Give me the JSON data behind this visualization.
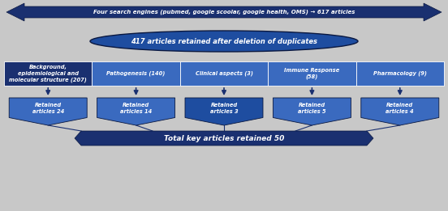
{
  "background_color": "#c8c8c8",
  "dark_blue": "#1a3070",
  "mid_blue": "#1e4da0",
  "light_blue": "#3a6abf",
  "top_arrow_text": "Four search engines (pubmed, google scoolar, google health, OMS) → 617 articles",
  "oval_text": "417 articles retained after deletion of duplicates",
  "categories": [
    "Background,\nepidemiological and\nmolecular structure (207)",
    "Pathogenesis (140)",
    "Clinical aspects (3)",
    "Immune Response\n(58)",
    "Pharmacology (9)"
  ],
  "retained": [
    "Retained\narticles 24",
    "Retained\narticles 14",
    "Retained\narticles 3",
    "Retained\narticles 5",
    "Retained\narticles 4"
  ],
  "bottom_text": "Total key articles retained 50"
}
